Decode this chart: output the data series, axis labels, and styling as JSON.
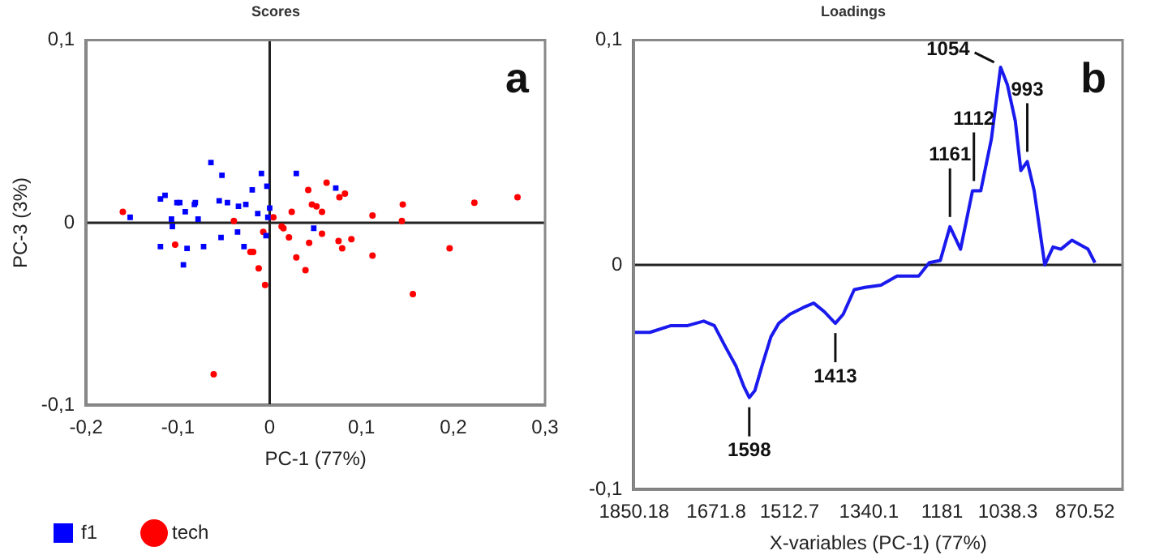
{
  "chart_data": [
    {
      "type": "scatter",
      "title": "Scores",
      "xlabel": "PC-1 (77%)",
      "ylabel": "PC-3 (3%)",
      "xlim": [
        -0.2,
        0.3
      ],
      "ylim": [
        -0.1,
        0.1
      ],
      "xticks": [
        {
          "value": -0.2,
          "label": "-0,2"
        },
        {
          "value": -0.1,
          "label": "-0,1"
        },
        {
          "value": 0,
          "label": "0"
        },
        {
          "value": 0.1,
          "label": "0,1"
        },
        {
          "value": 0.2,
          "label": "0,2"
        },
        {
          "value": 0.3,
          "label": "0,3"
        }
      ],
      "yticks": [
        {
          "value": -0.1,
          "label": "-0,1"
        },
        {
          "value": 0,
          "label": "0"
        },
        {
          "value": 0.1,
          "label": "0,1"
        }
      ],
      "grid": false,
      "legend": "bottom",
      "ref_lines": [
        {
          "axis": "x",
          "value": 0,
          "label": null
        },
        {
          "axis": "y",
          "value": 0,
          "label": null
        }
      ],
      "annotations": [
        "a"
      ],
      "series": [
        {
          "name": "f1",
          "color": "#0000ff",
          "marker": "square",
          "x": [
            -0.064,
            -0.052,
            -0.009,
            0.029,
            -0.003,
            -0.019,
            0.072,
            -0.114,
            -0.119,
            -0.101,
            -0.098,
            -0.081,
            -0.082,
            -0.055,
            -0.046,
            -0.034,
            -0.026,
            0,
            -0.092,
            -0.152,
            -0.107,
            -0.078,
            -0.013,
            -0.002,
            -0.106,
            -0.035,
            0.048,
            -0.053,
            -0.004,
            -0.119,
            -0.09,
            -0.072,
            -0.028,
            -0.094
          ],
          "values": [
            0.033,
            0.026,
            0.027,
            0.027,
            0.02,
            0.018,
            0.019,
            0.015,
            0.013,
            0.011,
            0.011,
            0.011,
            0.01,
            0.012,
            0.011,
            0.009,
            0.01,
            0.008,
            0.006,
            0.003,
            0.002,
            0.002,
            0.005,
            0.003,
            -0.002,
            -0.005,
            -0.003,
            -0.008,
            -0.007,
            -0.013,
            -0.014,
            -0.013,
            -0.013,
            -0.023
          ]
        },
        {
          "name": "tech",
          "color": "#ff0000",
          "marker": "circle",
          "x": [
            -0.16,
            -0.061,
            -0.103,
            -0.039,
            -0.021,
            -0.018,
            -0.012,
            -0.007,
            -0.005,
            0.004,
            0.013,
            0.015,
            0.021,
            0.024,
            0.029,
            0.039,
            0.042,
            0.043,
            0.046,
            0.051,
            0.057,
            0.057,
            0.062,
            0.076,
            0.082,
            0.075,
            0.079,
            0.089,
            0.112,
            0.112,
            0.144,
            0.145,
            0.156,
            0.196,
            0.223,
            0.27
          ],
          "values": [
            0.006,
            -0.083,
            -0.012,
            0.001,
            -0.016,
            -0.016,
            -0.025,
            -0.005,
            -0.034,
            0.003,
            -0.002,
            -0.003,
            -0.008,
            0.006,
            -0.019,
            -0.026,
            0.018,
            -0.011,
            0.01,
            0.009,
            0.006,
            -0.006,
            0.022,
            0.014,
            0.016,
            -0.01,
            -0.014,
            -0.009,
            0.004,
            -0.018,
            0.001,
            0.01,
            -0.039,
            -0.014,
            0.011,
            0.014
          ]
        }
      ]
    },
    {
      "type": "line",
      "title": "Loadings",
      "xlabel": "X-variables (PC-1) (77%)",
      "xlim": [
        1851,
        789
      ],
      "ylim": [
        -0.1,
        0.1
      ],
      "xticks": [
        1850.18,
        1671.8,
        1512.7,
        1340.1,
        1181,
        1038.3,
        870.52
      ],
      "yticks": [
        {
          "value": -0.1,
          "label": "-0,1"
        },
        {
          "value": 0,
          "label": "0"
        },
        {
          "value": 0.1,
          "label": "0,1"
        }
      ],
      "grid": false,
      "legend": false,
      "ref_lines": [
        {
          "axis": "y",
          "value": 0,
          "label": null
        }
      ],
      "annotations": [
        "b",
        {
          "text": "1598",
          "x": 1600,
          "y": -0.059
        },
        {
          "text": "1413",
          "x": 1413,
          "y": -0.026
        },
        {
          "text": "1161",
          "x": 1164,
          "y": 0.017
        },
        {
          "text": "1112",
          "x": 1112,
          "y": 0.033
        },
        {
          "text": "1054",
          "x": 1054,
          "y": 0.088
        },
        {
          "text": "993",
          "x": 996,
          "y": 0.046
        }
      ],
      "series": [
        {
          "color": "#1a1aee",
          "x": [
            1851,
            1816,
            1770,
            1734,
            1699,
            1676,
            1653,
            1629,
            1612,
            1600,
            1588,
            1571,
            1553,
            1536,
            1512,
            1483,
            1460,
            1436,
            1413,
            1396,
            1372,
            1349,
            1314,
            1279,
            1232,
            1209,
            1185,
            1164,
            1141,
            1115,
            1097,
            1074,
            1054,
            1039,
            1022,
            1010,
            996,
            981,
            958,
            940,
            923,
            899,
            864,
            849
          ],
          "values": [
            -0.03,
            -0.03,
            -0.027,
            -0.027,
            -0.025,
            -0.027,
            -0.036,
            -0.045,
            -0.054,
            -0.059,
            -0.056,
            -0.044,
            -0.032,
            -0.026,
            -0.022,
            -0.019,
            -0.017,
            -0.021,
            -0.026,
            -0.022,
            -0.011,
            -0.01,
            -0.009,
            -0.005,
            -0.005,
            0.001,
            0.002,
            0.017,
            0.007,
            0.033,
            0.033,
            0.056,
            0.088,
            0.08,
            0.064,
            0.042,
            0.046,
            0.033,
            0,
            0.008,
            0.007,
            0.011,
            0.007,
            0.001
          ]
        }
      ]
    }
  ]
}
